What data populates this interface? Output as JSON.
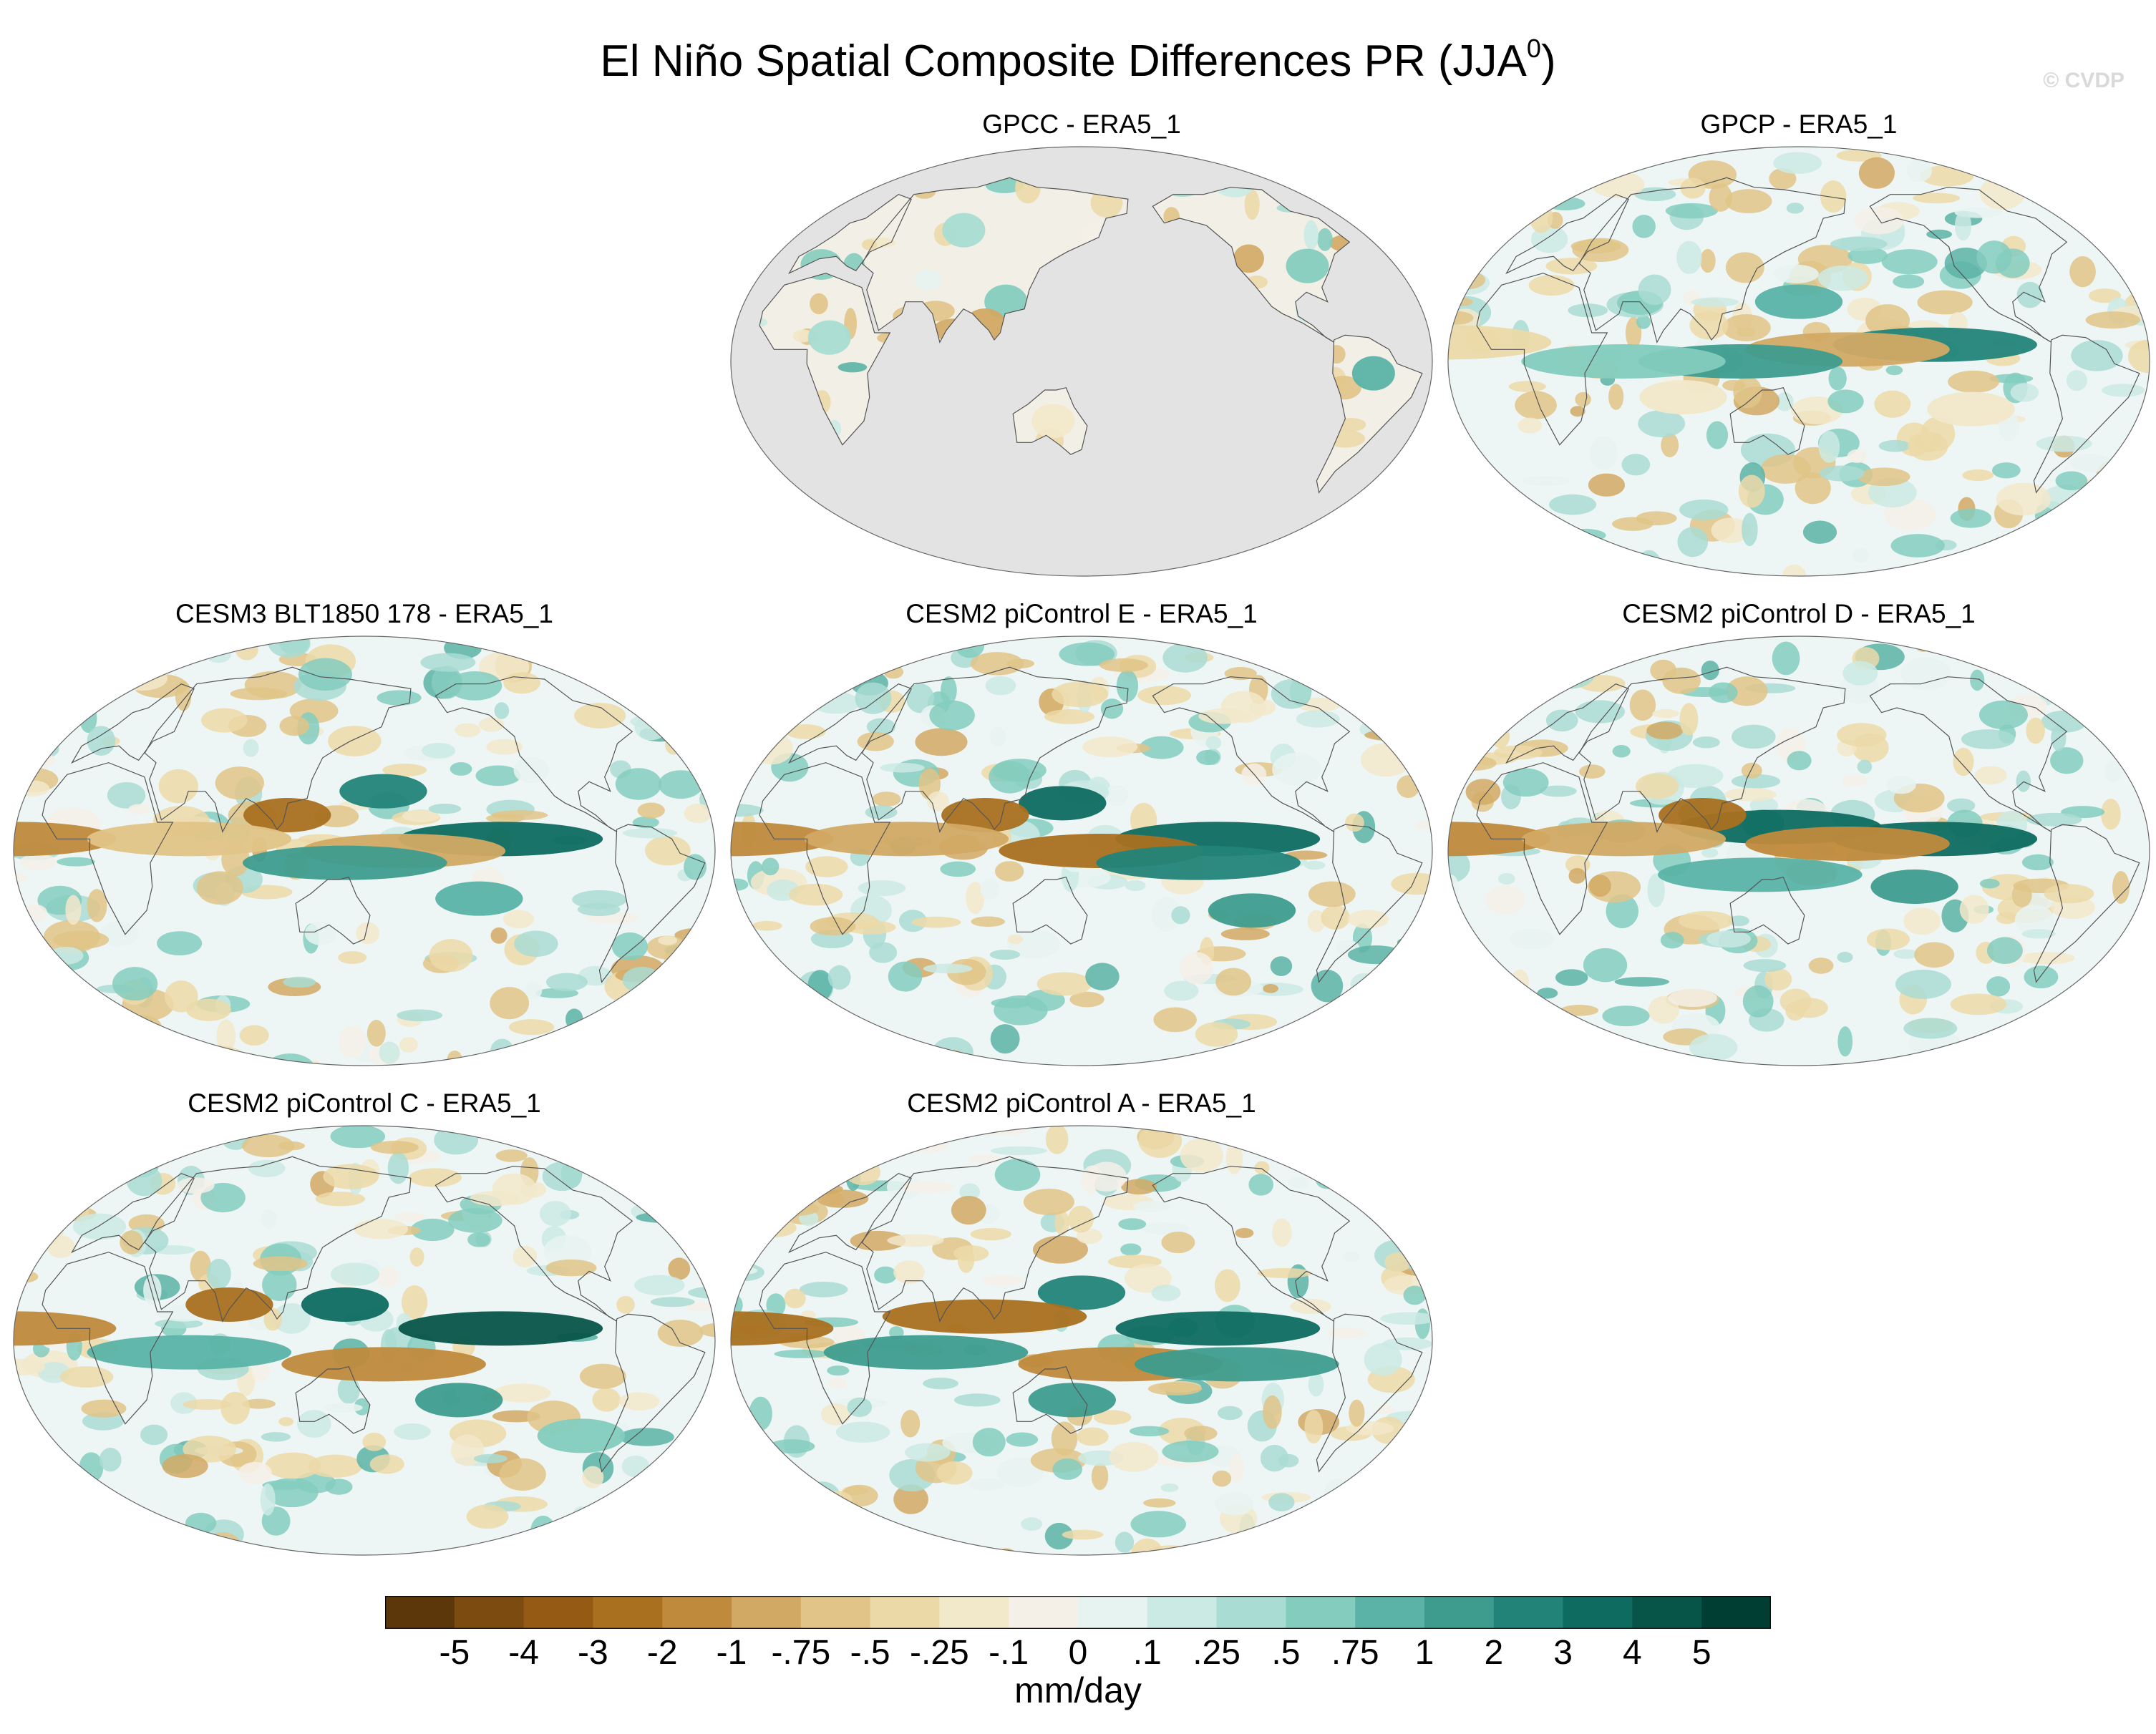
{
  "figure": {
    "title_main": "El Niño Spatial Composite Differences PR (JJA",
    "title_sup": "0",
    "title_close": ")",
    "watermark": "© CVDP",
    "units": "mm/day"
  },
  "panels": [
    {
      "title": "GPCC - ERA5_1",
      "land_only": true,
      "features": [
        {
          "lon": 110,
          "lat": 25,
          "value": 0.5
        },
        {
          "lon": 100,
          "lat": 15,
          "value": -1
        },
        {
          "lon": 120,
          "lat": 0,
          "value": 2
        },
        {
          "lon": -60,
          "lat": -5,
          "value": 0.75
        },
        {
          "lon": -85,
          "lat": 40,
          "value": 0.5
        },
        {
          "lon": 135,
          "lat": -25,
          "value": -0.25
        },
        {
          "lon": 80,
          "lat": 55,
          "value": 0.25
        },
        {
          "lon": 20,
          "lat": 10,
          "value": 0.25
        }
      ]
    },
    {
      "title": "GPCP - ERA5_1",
      "land_only": false,
      "features": [
        {
          "lon": -140,
          "lat": 7,
          "value": 2
        },
        {
          "lon": 175,
          "lat": 5,
          "value": -1
        },
        {
          "lon": 120,
          "lat": 0,
          "value": 1
        },
        {
          "lon": 150,
          "lat": 25,
          "value": 0.75
        },
        {
          "lon": -30,
          "lat": 8,
          "value": -0.5
        },
        {
          "lon": 90,
          "lat": -15,
          "value": -0.25
        },
        {
          "lon": -120,
          "lat": -20,
          "value": -0.25
        },
        {
          "lon": 60,
          "lat": 0,
          "value": 0.5
        }
      ]
    },
    {
      "title": "CESM3 BLT1850 178 - ERA5_1",
      "land_only": false,
      "features": [
        {
          "lon": -140,
          "lat": 5,
          "value": 3
        },
        {
          "lon": 160,
          "lat": 25,
          "value": 2
        },
        {
          "lon": 110,
          "lat": 15,
          "value": -3
        },
        {
          "lon": 170,
          "lat": 0,
          "value": -1
        },
        {
          "lon": -30,
          "lat": 5,
          "value": -2
        },
        {
          "lon": 140,
          "lat": -5,
          "value": 1
        },
        {
          "lon": -150,
          "lat": -20,
          "value": 0.75
        },
        {
          "lon": 60,
          "lat": 5,
          "value": -0.75
        }
      ]
    },
    {
      "title": "CESM2 piControl E - ERA5_1",
      "land_only": false,
      "features": [
        {
          "lon": -140,
          "lat": 5,
          "value": 3
        },
        {
          "lon": 160,
          "lat": 0,
          "value": -3
        },
        {
          "lon": 140,
          "lat": 20,
          "value": 3
        },
        {
          "lon": 100,
          "lat": 15,
          "value": -3
        },
        {
          "lon": -150,
          "lat": -5,
          "value": 2
        },
        {
          "lon": -30,
          "lat": 5,
          "value": -2
        },
        {
          "lon": -120,
          "lat": -25,
          "value": 1
        },
        {
          "lon": 60,
          "lat": 5,
          "value": -1
        }
      ]
    },
    {
      "title": "CESM2 piControl D - ERA5_1",
      "land_only": false,
      "features": [
        {
          "lon": -140,
          "lat": 5,
          "value": 3
        },
        {
          "lon": 140,
          "lat": 10,
          "value": 3
        },
        {
          "lon": 100,
          "lat": 15,
          "value": -3
        },
        {
          "lon": 175,
          "lat": 3,
          "value": -2
        },
        {
          "lon": -30,
          "lat": 5,
          "value": -2
        },
        {
          "lon": -150,
          "lat": -15,
          "value": 1
        },
        {
          "lon": 60,
          "lat": 5,
          "value": -1
        },
        {
          "lon": 130,
          "lat": -10,
          "value": 0.75
        }
      ]
    },
    {
      "title": "CESM2 piControl C - ERA5_1",
      "land_only": false,
      "features": [
        {
          "lon": -140,
          "lat": 5,
          "value": 4
        },
        {
          "lon": 140,
          "lat": 15,
          "value": 3
        },
        {
          "lon": 80,
          "lat": 15,
          "value": -3
        },
        {
          "lon": 160,
          "lat": -10,
          "value": -2
        },
        {
          "lon": -30,
          "lat": 5,
          "value": -2
        },
        {
          "lon": -160,
          "lat": -25,
          "value": 1
        },
        {
          "lon": 60,
          "lat": -5,
          "value": 0.75
        },
        {
          "lon": -90,
          "lat": -40,
          "value": 0.5
        }
      ]
    },
    {
      "title": "CESM2 piControl A - ERA5_1",
      "land_only": false,
      "features": [
        {
          "lon": -140,
          "lat": 5,
          "value": 3
        },
        {
          "lon": 150,
          "lat": 20,
          "value": 2
        },
        {
          "lon": 100,
          "lat": 10,
          "value": -3
        },
        {
          "lon": -30,
          "lat": 5,
          "value": -3
        },
        {
          "lon": 170,
          "lat": -10,
          "value": -2
        },
        {
          "lon": 145,
          "lat": -25,
          "value": 1
        },
        {
          "lon": -130,
          "lat": -10,
          "value": 1
        },
        {
          "lon": 70,
          "lat": -5,
          "value": 1
        }
      ]
    }
  ],
  "colorbar": {
    "colors": [
      "#5c3709",
      "#7c4b0f",
      "#955a14",
      "#a9701f",
      "#bf8a3c",
      "#d2a964",
      "#e1c487",
      "#ecd9a8",
      "#f2e8ca",
      "#f4f0e8",
      "#e7f3f1",
      "#cbeae4",
      "#a9dcd3",
      "#84ccbe",
      "#5ab3a6",
      "#3e9c8e",
      "#228479",
      "#0e6b60",
      "#075449",
      "#003d33"
    ],
    "labels": [
      "-5",
      "-4",
      "-3",
      "-2",
      "-1",
      "-.75",
      "-.5",
      "-.25",
      "-.1",
      "0",
      ".1",
      ".25",
      ".5",
      ".75",
      "1",
      "2",
      "3",
      "4",
      "5"
    ]
  }
}
